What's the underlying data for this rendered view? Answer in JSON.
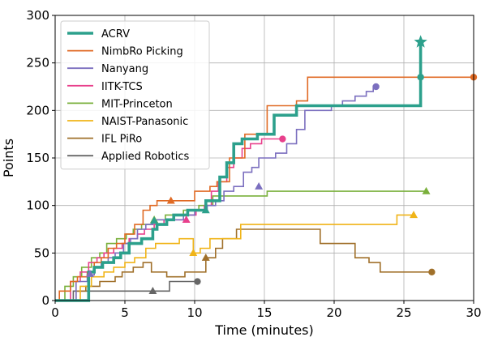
{
  "chart_data": {
    "type": "line",
    "step": true,
    "title": "",
    "xlabel": "Time (minutes)",
    "ylabel": "Points",
    "xlim": [
      0,
      30
    ],
    "ylim": [
      0,
      300
    ],
    "xticks": [
      0,
      5,
      10,
      15,
      20,
      25,
      30
    ],
    "yticks": [
      0,
      50,
      100,
      150,
      200,
      250,
      300
    ],
    "grid": true,
    "legend_position": "top-left",
    "series": [
      {
        "name": "ACRV",
        "color": "#2ca08c",
        "x": [
          0,
          2.4,
          2.8,
          3.4,
          4.2,
          4.7,
          5.3,
          6.2,
          7.0,
          7.3,
          8.0,
          8.5,
          9.5,
          10.0,
          10.8,
          11.8,
          12.3,
          12.8,
          13.4,
          13.9,
          14.5,
          15.7,
          17.3,
          18.3,
          26.2,
          26.2
        ],
        "y": [
          0,
          30,
          35,
          40,
          45,
          50,
          60,
          65,
          75,
          80,
          85,
          90,
          95,
          95,
          105,
          130,
          145,
          165,
          170,
          170,
          175,
          195,
          205,
          205,
          272,
          272
        ],
        "marker": "star"
      },
      {
        "name": "NimbRo Picking",
        "color": "#e06a24",
        "x": [
          0,
          0.3,
          1.1,
          1.6,
          2.3,
          2.8,
          3.3,
          3.8,
          4.4,
          5.0,
          5.7,
          6.3,
          6.8,
          7.3,
          8.3,
          10.0,
          11.1,
          11.6,
          12.5,
          13.6,
          15.2,
          17.3,
          18.1,
          23.0,
          30
        ],
        "y": [
          0,
          10,
          20,
          25,
          30,
          40,
          45,
          55,
          60,
          70,
          80,
          95,
          100,
          105,
          105,
          115,
          120,
          125,
          150,
          175,
          205,
          210,
          235,
          235,
          235
        ],
        "marker": "circle"
      },
      {
        "name": "Nanyang",
        "color": "#7b6fbf",
        "x": [
          0,
          1.5,
          2.3,
          2.8,
          3.3,
          3.8,
          4.3,
          4.9,
          5.4,
          5.9,
          6.5,
          7.0,
          7.7,
          8.4,
          9.2,
          10.0,
          10.9,
          11.5,
          12.1,
          12.8,
          13.5,
          14.1,
          14.6,
          15.8,
          16.6,
          17.3,
          17.9,
          19.8,
          20.6,
          21.5,
          22.3,
          22.8,
          23.0
        ],
        "y": [
          0,
          20,
          27,
          35,
          40,
          45,
          50,
          60,
          65,
          75,
          80,
          85,
          85,
          85,
          90,
          95,
          100,
          105,
          115,
          120,
          135,
          140,
          150,
          155,
          165,
          180,
          200,
          205,
          210,
          215,
          220,
          225,
          225
        ],
        "marker": "circle"
      },
      {
        "name": "IITK-TCS",
        "color": "#e8408c",
        "x": [
          0,
          1.1,
          1.8,
          2.4,
          3.0,
          3.5,
          4.2,
          4.8,
          5.3,
          5.9,
          6.4,
          7.1,
          7.8,
          8.5,
          9.0,
          9.4,
          10.1,
          10.7,
          11.2,
          11.7,
          12.3,
          12.8,
          13.4,
          14.0,
          14.8,
          16.3
        ],
        "y": [
          0,
          20,
          30,
          40,
          45,
          50,
          55,
          60,
          65,
          70,
          75,
          80,
          85,
          85,
          85,
          90,
          95,
          100,
          115,
          125,
          140,
          150,
          160,
          165,
          170,
          170
        ],
        "marker": "circle"
      },
      {
        "name": "MIT-Princeton",
        "color": "#7ab03c",
        "x": [
          0,
          0.7,
          1.3,
          1.9,
          2.6,
          3.2,
          3.7,
          4.4,
          5.1,
          5.6,
          6.2,
          7.0,
          7.9,
          9.2,
          10.3,
          11.3,
          13.8,
          15.2,
          26.6
        ],
        "y": [
          0,
          15,
          25,
          35,
          45,
          50,
          60,
          65,
          70,
          75,
          80,
          85,
          90,
          95,
          100,
          110,
          110,
          115,
          115
        ],
        "marker": "triangle"
      },
      {
        "name": "NAIST-Panasonic",
        "color": "#f0b418",
        "x": [
          0,
          1.8,
          2.6,
          3.5,
          4.2,
          5.0,
          5.7,
          6.5,
          7.2,
          8.0,
          8.9,
          9.9,
          10.4,
          11.1,
          13.3,
          18.2,
          24.5,
          25.7
        ],
        "y": [
          0,
          15,
          25,
          30,
          35,
          40,
          45,
          55,
          60,
          60,
          65,
          50,
          55,
          65,
          80,
          80,
          90,
          90
        ],
        "marker": "triangle"
      },
      {
        "name": "IFL PiRo",
        "color": "#a0702a",
        "x": [
          0,
          1.5,
          2.2,
          3.2,
          4.3,
          4.8,
          5.6,
          6.3,
          6.9,
          8.0,
          9.3,
          10.8,
          11.5,
          12.0,
          13.0,
          18.0,
          19.0,
          21.5,
          22.5,
          23.3,
          27.0
        ],
        "y": [
          0,
          10,
          15,
          20,
          25,
          30,
          35,
          40,
          30,
          25,
          30,
          45,
          55,
          65,
          75,
          75,
          60,
          45,
          40,
          30,
          30
        ],
        "marker": "circle"
      },
      {
        "name": "Applied Robotics",
        "color": "#666666",
        "x": [
          0,
          1.3,
          8.2,
          10.2
        ],
        "y": [
          0,
          10,
          20,
          20
        ],
        "marker": "circle"
      }
    ]
  }
}
